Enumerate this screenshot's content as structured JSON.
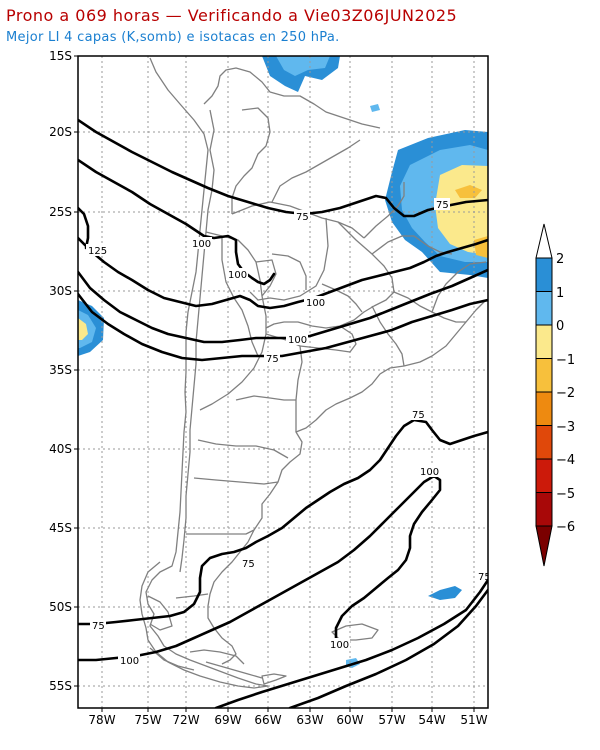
{
  "header": {
    "title": "Prono a 069 horas — Verificando a Vie03Z06JUN2025",
    "subtitle": "Mejor LI 4 capas (K,somb) e isotacas en 250 hPa."
  },
  "axes": {
    "lat_labels": [
      "15S",
      "20S",
      "25S",
      "30S",
      "35S",
      "40S",
      "45S",
      "50S",
      "55S"
    ],
    "lon_labels": [
      "78W",
      "75W",
      "72W",
      "69W",
      "66W",
      "63W",
      "60W",
      "57W",
      "54W",
      "51W"
    ]
  },
  "isotach_labels": [
    "125",
    "100",
    "75",
    "75",
    "100",
    "100",
    "100",
    "75",
    "75",
    "100",
    "75",
    "75",
    "100",
    "100"
  ],
  "colorbar": {
    "labels": [
      "2",
      "1",
      "0",
      "−1",
      "−2",
      "−3",
      "−4",
      "−5",
      "−6"
    ],
    "colors": [
      "#2a8fd6",
      "#60b8ee",
      "#fbe98c",
      "#f7c03c",
      "#ee8a10",
      "#e0480a",
      "#cc1a0a",
      "#a80808",
      "#7a0000"
    ],
    "top_color": "#ffffff",
    "bottom_color": "#7a0000"
  },
  "li_fill_colors": {
    "strong_blue": "#2a8fd6",
    "light_blue": "#60b8ee",
    "yellow": "#fbe98c",
    "orange": "#f7c03c"
  }
}
